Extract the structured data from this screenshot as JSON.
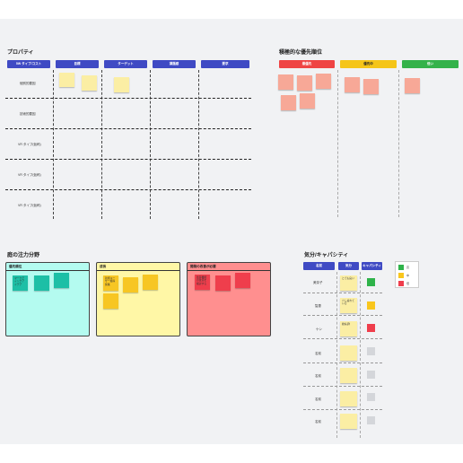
{
  "sections": {
    "property": {
      "title": "プロパティ",
      "headers": [
        "5W タイプ/コスト",
        "目標",
        "ターゲット",
        "課題感",
        "要求"
      ],
      "rows": [
        "個別的要因",
        "技術的要因",
        "VR タイプ(仮称)",
        "VR タイプ(仮称)",
        "VR タイプ(仮称)"
      ]
    },
    "priority": {
      "title": "積極的な優先順位",
      "headers": [
        "最優先",
        "優先中",
        "低い"
      ]
    },
    "focus": {
      "title": "庭の注力分野",
      "panels": [
        {
          "title": "優先順位",
          "note": "マーケティングアイデア"
        },
        {
          "title": "成長",
          "note": "新規ユーザー獲得施策"
        },
        {
          "title": "開発の改善が必要",
          "note": "既存機能の改善を検討する"
        }
      ]
    },
    "capacity": {
      "title": "気分/キャパシティ",
      "headers": [
        "名前",
        "気分",
        "キャパシティ"
      ],
      "names": [
        "美奈子",
        "智恵",
        "ケン",
        "名前",
        "名前",
        "名前",
        "名前"
      ],
      "moods": [
        "とても良い",
        "少し疲れている",
        "絶好調!",
        "",
        "",
        "",
        ""
      ],
      "legend": [
        "高",
        "中",
        "低"
      ]
    }
  },
  "colors": {
    "header_blue": "#3f4ac4",
    "priority_high": "#ef4444",
    "priority_mid": "#f5c518",
    "priority_low": "#34b24a",
    "sticky_yellow": "#fbeea4",
    "sticky_salmon": "#f7a897",
    "sticky_teal": "#1dbfa6",
    "panel_teal": "#b4fbf0",
    "panel_yellow": "#fff7a6",
    "panel_red": "#ff8f8f",
    "capacity_green": "#2fb34a",
    "capacity_yellow": "#f9c61d",
    "capacity_red": "#ef3e4c",
    "capacity_empty": "#d4d6da"
  }
}
